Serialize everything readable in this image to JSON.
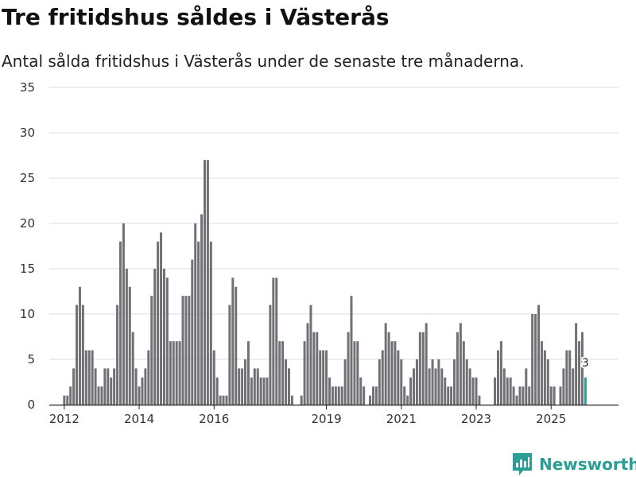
{
  "header": {
    "title": "Tre fritidshus såldes i Västerås",
    "subtitle": "Antal sålda fritidshus i Västerås under de senaste tre månaderna."
  },
  "brand": {
    "name": "Newsworthy",
    "icon": "newsworthy-logo-icon"
  },
  "colors": {
    "bar": "#707075",
    "highlight": "#2a9d95",
    "grid": "#dddddd",
    "axis": "#222222"
  },
  "chart_data": {
    "type": "bar",
    "title": "Tre fritidshus såldes i Västerås",
    "subtitle": "Antal sålda fritidshus i Västerås under de senaste tre månaderna.",
    "xlabel": "",
    "ylabel": "",
    "ylim": [
      0,
      35
    ],
    "yticks": [
      0,
      5,
      10,
      15,
      20,
      25,
      30,
      35
    ],
    "x_range": [
      2011.6,
      2026.8
    ],
    "xticks": [
      {
        "value": 2012,
        "label": "2012"
      },
      {
        "value": 2014,
        "label": "2014"
      },
      {
        "value": 2016,
        "label": "2016"
      },
      {
        "value": 2019,
        "label": "2019"
      },
      {
        "value": 2021,
        "label": "2021"
      },
      {
        "value": 2023,
        "label": "2023"
      },
      {
        "value": 2025,
        "label": "2025"
      }
    ],
    "grid": true,
    "series": [
      {
        "name": "Antal sålda fritidshus",
        "start": "2012-01",
        "frequency": "monthly",
        "values": [
          1,
          1,
          2,
          4,
          11,
          13,
          11,
          6,
          6,
          6,
          4,
          2,
          2,
          4,
          4,
          3,
          4,
          11,
          18,
          20,
          15,
          13,
          8,
          4,
          2,
          3,
          4,
          6,
          12,
          15,
          18,
          19,
          15,
          14,
          7,
          7,
          7,
          7,
          12,
          12,
          12,
          16,
          20,
          18,
          21,
          27,
          27,
          18,
          6,
          3,
          1,
          1,
          1,
          11,
          14,
          13,
          4,
          4,
          5,
          7,
          3,
          4,
          4,
          3,
          3,
          3,
          11,
          14,
          14,
          7,
          7,
          5,
          4,
          1,
          0,
          0,
          1,
          7,
          9,
          11,
          8,
          8,
          6,
          6,
          6,
          3,
          2,
          2,
          2,
          2,
          5,
          8,
          12,
          7,
          7,
          3,
          2,
          0,
          1,
          2,
          2,
          5,
          6,
          9,
          8,
          7,
          7,
          6,
          5,
          2,
          1,
          3,
          4,
          5,
          8,
          8,
          9,
          4,
          5,
          4,
          5,
          4,
          3,
          2,
          2,
          5,
          8,
          9,
          7,
          5,
          4,
          3,
          3,
          1,
          0,
          0,
          0,
          0,
          3,
          6,
          7,
          4,
          3,
          3,
          2,
          1,
          2,
          2,
          4,
          2,
          10,
          10,
          11,
          7,
          6,
          5,
          2,
          2,
          0,
          2,
          4,
          6,
          6,
          4,
          9,
          7,
          8,
          3
        ],
        "highlight_last": true
      }
    ],
    "annotations": [
      {
        "x": "2025-12",
        "text": "3"
      }
    ]
  }
}
